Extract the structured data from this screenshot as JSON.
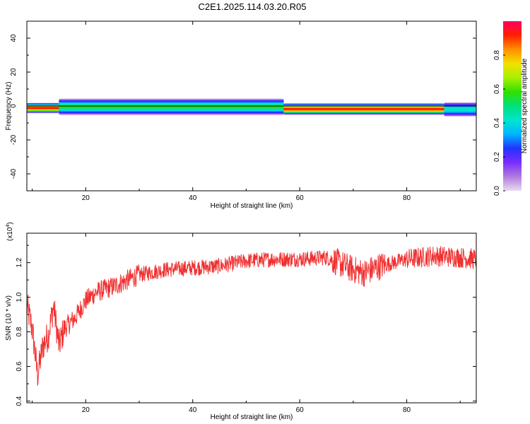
{
  "title": "C2E1.2025.114.03.20.R05",
  "chart_data": [
    {
      "type": "heatmap",
      "xlabel": "Height of straight line (km)",
      "ylabel": "Frequency (Hz)",
      "xlim": [
        9,
        93
      ],
      "ylim": [
        -50,
        50
      ],
      "xticks": [
        "20",
        "40",
        "60",
        "80"
      ],
      "yticks": [
        "-40",
        "-20",
        "0",
        "20",
        "40"
      ],
      "colorbar": {
        "label": "Normalized spectral amplitude",
        "range": [
          0,
          1
        ],
        "ticks": [
          "0.0",
          "0.2",
          "0.4",
          "0.6",
          "0.8"
        ],
        "colors": [
          "#e8dcf0",
          "#b07bdc",
          "#7a2cff",
          "#2233ff",
          "#00b4ff",
          "#00e5d0",
          "#00e07a",
          "#30e000",
          "#a8f000",
          "#f4e000",
          "#ff9000",
          "#ff2000",
          "#ff0060"
        ]
      },
      "segments": [
        {
          "x": [
            9,
            15
          ],
          "center_hz": -1.2,
          "halfwidth_hz": 2.5,
          "peak": 0.93
        },
        {
          "x": [
            15,
            57
          ],
          "center_hz": -0.5,
          "halfwidth_hz": 4.0,
          "peak": 0.55
        },
        {
          "x": [
            57,
            87
          ],
          "center_hz": -1.8,
          "halfwidth_hz": 2.8,
          "peak": 0.95
        },
        {
          "x": [
            87,
            93
          ],
          "center_hz": -2.0,
          "halfwidth_hz": 3.5,
          "peak": 0.45
        }
      ]
    },
    {
      "type": "line",
      "xlabel": "Height of straight line (km)",
      "ylabel": "SNR (10 * v/v)",
      "scale_note": "(x10",
      "scale_exp": "4",
      "scale_close": ")",
      "xlim": [
        9,
        93
      ],
      "ylim": [
        0.39,
        1.37
      ],
      "xticks": [
        "20",
        "40",
        "60",
        "80"
      ],
      "yticks": [
        "0.4",
        "0.6",
        "0.8",
        "1.0",
        "1.2"
      ],
      "color": "#f03030",
      "trend": {
        "x": [
          9,
          10,
          11,
          12,
          13,
          14,
          15,
          16,
          18,
          20,
          22,
          25,
          30,
          35,
          40,
          45,
          50,
          55,
          60,
          65,
          70,
          72,
          75,
          80,
          85,
          90,
          93
        ],
        "y": [
          0.95,
          0.82,
          0.55,
          0.72,
          0.78,
          0.95,
          0.72,
          0.82,
          0.88,
          0.98,
          1.03,
          1.06,
          1.13,
          1.16,
          1.17,
          1.18,
          1.21,
          1.22,
          1.22,
          1.23,
          1.16,
          1.14,
          1.18,
          1.22,
          1.24,
          1.23,
          1.22
        ]
      }
    }
  ]
}
